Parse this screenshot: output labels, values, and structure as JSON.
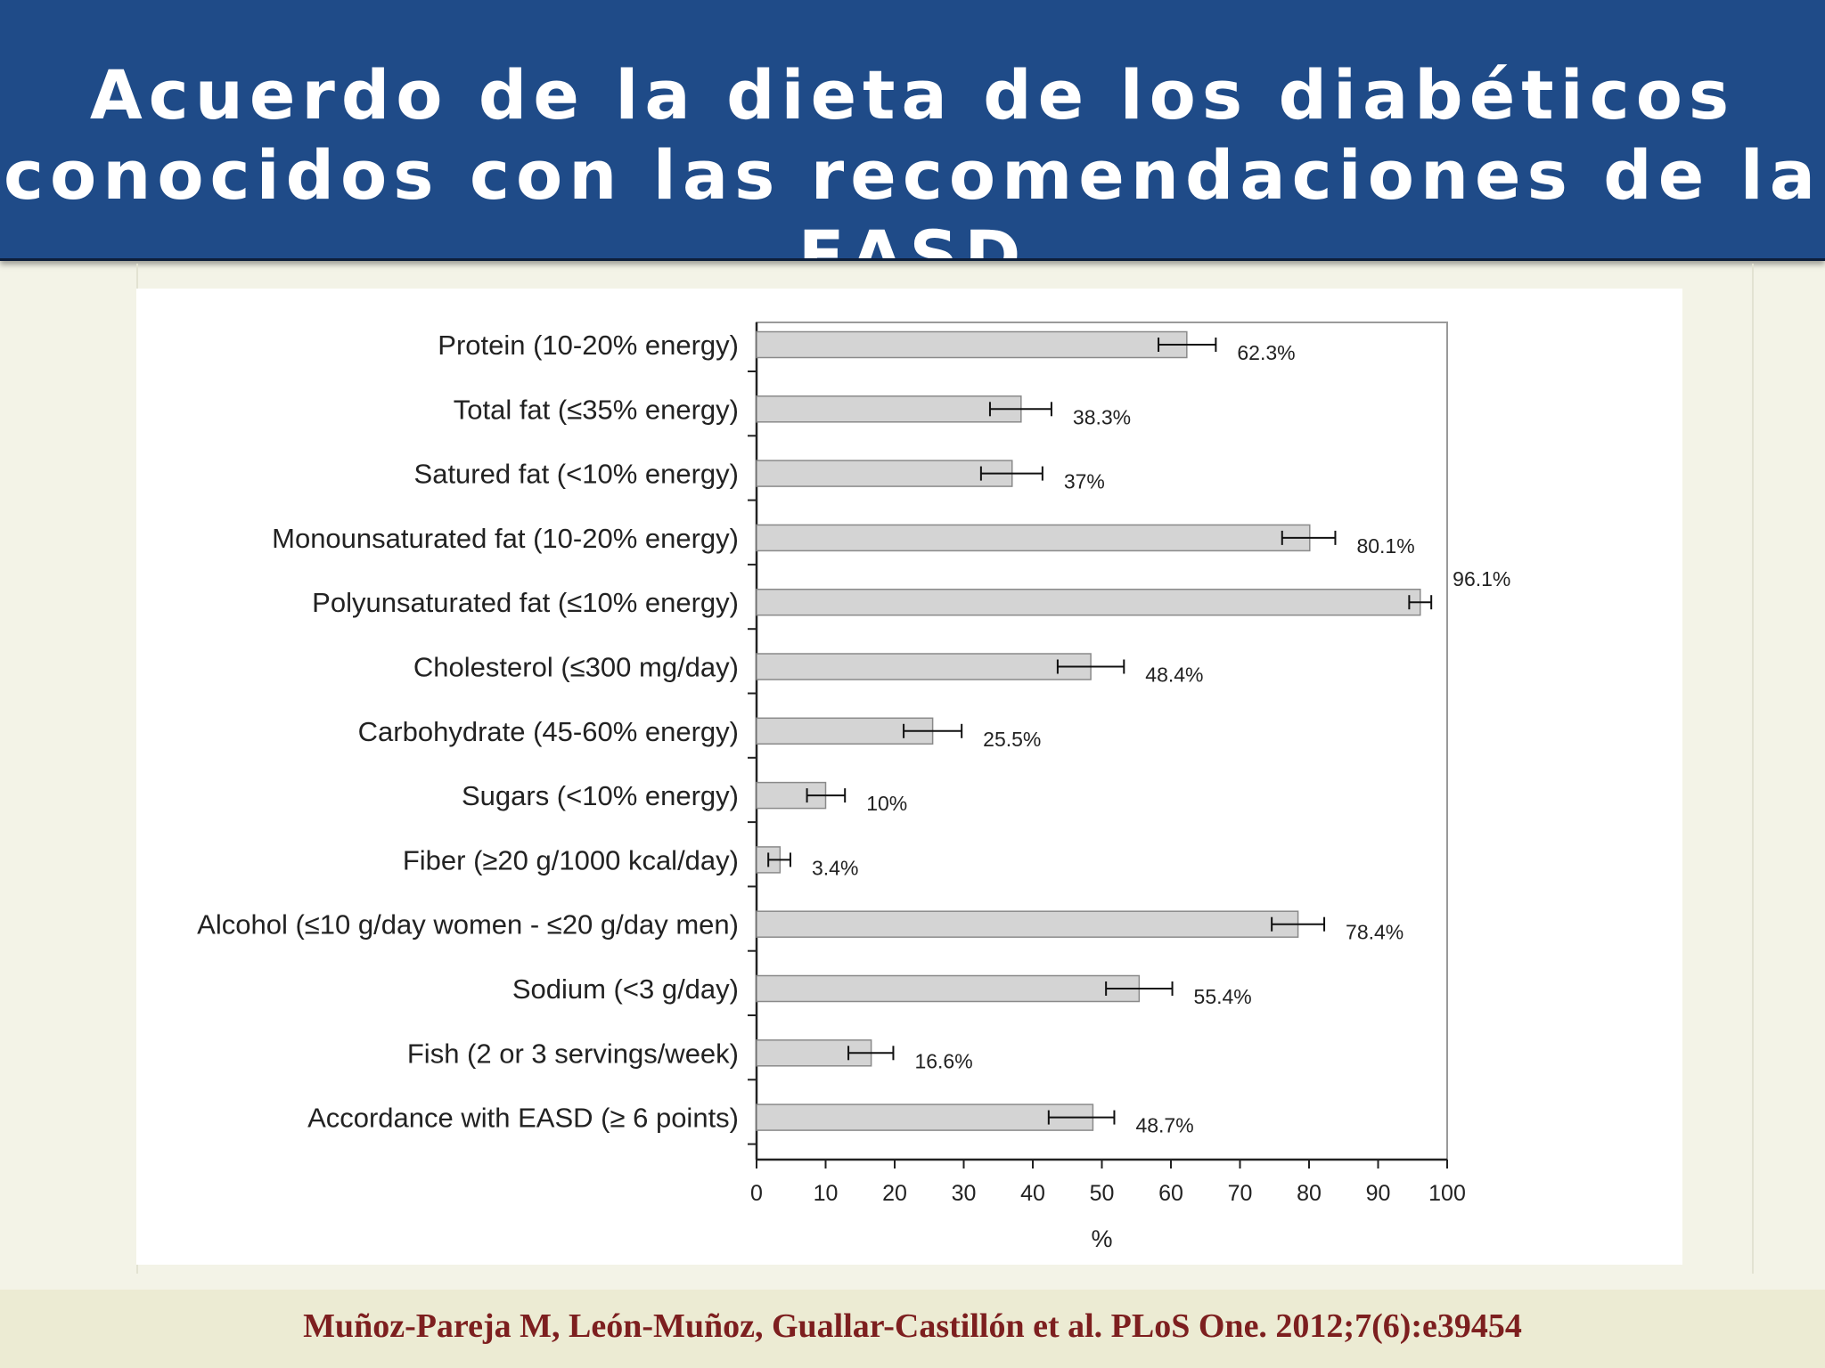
{
  "slide": {
    "title": "Acuerdo de la dieta de los diabéticos conocidos con las recomendaciones de la EASD",
    "citation": "Muñoz-Pareja M, León-Muñoz, Guallar-Castillón et al. PLoS One. 2012;7(6):e39454"
  },
  "colors": {
    "header_bg": "#1f4b88",
    "slide_bg": "#f3f3e7",
    "bar_fill": "#d4d4d4",
    "bar_stroke": "#8a8a8a",
    "citation_text": "#7d1f1f"
  },
  "chart_data": {
    "type": "bar",
    "orientation": "horizontal",
    "categories": [
      "Protein (10-20% energy)",
      "Total fat (≤35% energy)",
      "Satured fat (<10% energy)",
      "Monounsaturated fat (10-20% energy)",
      "Polyunsaturated fat (≤10% energy)",
      "Cholesterol (≤300 mg/day)",
      "Carbohydrate (45-60% energy)",
      "Sugars (<10% energy)",
      "Fiber (≥20 g/1000 kcal/day)",
      "Alcohol (≤10 g/day women - ≤20 g/day men)",
      "Sodium (<3 g/day)",
      "Fish  (2 or 3 servings/week)",
      "Accordance with EASD (≥ 6 points)"
    ],
    "values": [
      62.3,
      38.3,
      37,
      80.1,
      96.1,
      48.4,
      25.5,
      10,
      3.4,
      78.4,
      55.4,
      16.6,
      48.7
    ],
    "error_low": [
      58.2,
      33.8,
      32.5,
      76.1,
      94.5,
      43.6,
      21.3,
      7.3,
      1.7,
      74.6,
      50.6,
      13.3,
      42.3
    ],
    "error_high": [
      66.5,
      42.7,
      41.4,
      83.8,
      97.7,
      53.2,
      29.7,
      12.8,
      4.9,
      82.2,
      60.2,
      19.8,
      51.8
    ],
    "data_labels": [
      "62.3%",
      "38.3%",
      "37%",
      "80.1%",
      "96.1%",
      "48.4%",
      "25.5%",
      "10%",
      "3.4%",
      "78.4%",
      "55.4%",
      "16.6%",
      "48.7%"
    ],
    "x_ticks": [
      "0",
      "10",
      "20",
      "30",
      "40",
      "50",
      "60",
      "70",
      "80",
      "90",
      "100"
    ],
    "xlim": [
      0,
      100
    ],
    "xlabel": "%",
    "ylabel": "",
    "title": "",
    "grid": false,
    "legend": "none"
  }
}
